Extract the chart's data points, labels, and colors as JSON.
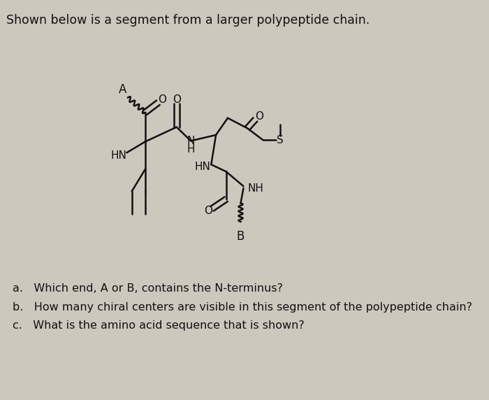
{
  "title": "Shown below is a segment from a larger polypeptide chain.",
  "background_color": "#cdc8be",
  "questions": [
    "a.   Which end, A or B, contains the N-terminus?",
    "b.   How many chiral centers are visible in this segment of the polypeptide chain?",
    "c.   What is the amino acid sequence that is shown?"
  ],
  "sc": "#111111",
  "lw": 1.8
}
